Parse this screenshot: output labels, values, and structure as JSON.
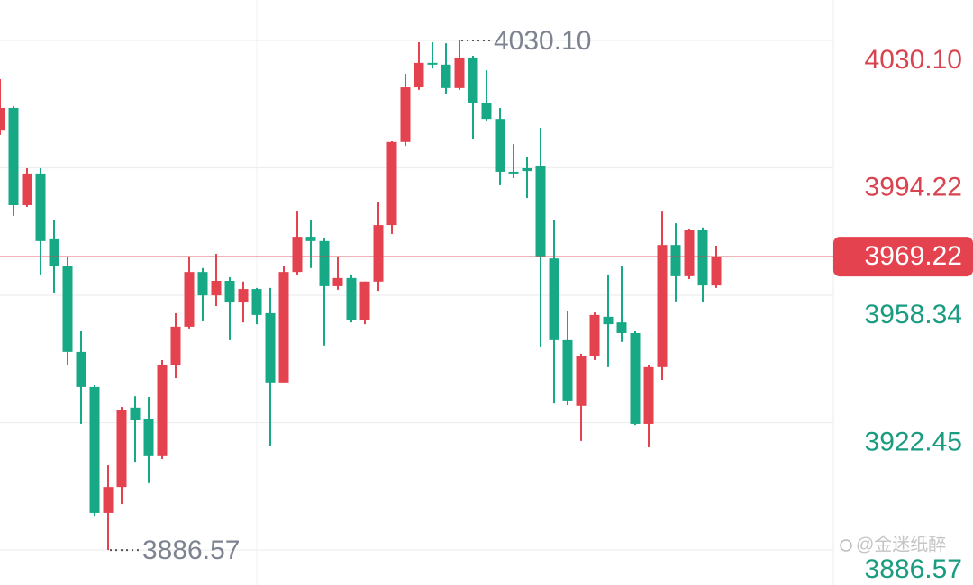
{
  "chart_data": {
    "type": "candlestick",
    "up_color": "#e5424f",
    "down_color": "#17a886",
    "ylim": [
      3876.7,
      4041.51
    ],
    "yticks": [
      {
        "value": 4030.1,
        "label": "4030.10"
      },
      3994.22,
      3958.34,
      3922.45,
      3886.57
    ],
    "grid": true,
    "last_price": 3969.22,
    "annotations": [
      {
        "value": 4030.1,
        "label": "4030.10"
      },
      {
        "value": 3886.57,
        "label": "3886.57"
      }
    ],
    "open": [
      4004.7,
      4011.1,
      3983.7,
      3992.6,
      3974.1,
      3966.7,
      3942.4,
      3932.5,
      3897.0,
      3904.3,
      3926.7,
      3923.6,
      3913.0,
      3938.8,
      3949.5,
      3964.9,
      3958.3,
      3962.4,
      3956.3,
      3960.1,
      3953.3,
      3933.8,
      3964.9,
      3974.8,
      3973.6,
      3960.9,
      3963.2,
      3951.5,
      3962.2,
      3978.1,
      4001.5,
      4016.9,
      4023.8,
      4023.3,
      4016.7,
      4025.3,
      4012.4,
      4008.0,
      3993.1,
      3994.1,
      3994.6,
      3968.7,
      3945.7,
      3927.2,
      3941.1,
      3952.3,
      3950.7,
      3947.7,
      3922.1,
      3938.1,
      3972.5,
      3963.7,
      3976.6,
      3961.1
    ],
    "high": [
      4019.2,
      4011.6,
      3994.1,
      3994.1,
      3979.6,
      3969.3,
      3948.2,
      3933.0,
      3910.4,
      3926.9,
      3929.9,
      3929.7,
      3940.1,
      3953.3,
      3969.3,
      3966.0,
      3970.0,
      3963.4,
      3962.2,
      3960.4,
      3960.4,
      3966.7,
      3981.9,
      3979.6,
      3974.3,
      3969.3,
      3964.2,
      3962.2,
      3984.5,
      4001.7,
      4020.7,
      4029.6,
      4029.6,
      4029.3,
      4030.1,
      4025.8,
      4021.7,
      4011.1,
      4000.9,
      3997.4,
      4005.5,
      3979.4,
      3954.0,
      3941.9,
      3953.5,
      3964.2,
      3966.5,
      3948.2,
      3938.8,
      3981.9,
      3978.6,
      3977.1,
      3977.4,
      3972.3
    ],
    "low": [
      4003.5,
      3980.7,
      3983.2,
      3964.2,
      3959.1,
      3938.6,
      3922.1,
      3896.2,
      3886.57,
      3899.5,
      3911.4,
      3905.4,
      3912.2,
      3935.0,
      3949.0,
      3951.0,
      3955.3,
      3945.7,
      3950.7,
      3950.2,
      3915.8,
      3933.8,
      3964.2,
      3966.0,
      3944.2,
      3959.9,
      3950.7,
      3950.2,
      3959.6,
      3975.6,
      4000.4,
      4016.2,
      4022.2,
      4014.9,
      4016.2,
      4002.2,
      4007.3,
      3989.3,
      3991.3,
      3985.7,
      3943.9,
      3927.9,
      3927.4,
      3917.3,
      3940.1,
      3938.1,
      3945.2,
      3921.8,
      3915.5,
      3934.5,
      3956.6,
      3962.9,
      3956.3,
      3960.4
    ],
    "close": [
      4011.1,
      3983.7,
      3992.6,
      3973.6,
      3966.7,
      3942.4,
      3932.5,
      3897.0,
      3904.3,
      3926.1,
      3923.1,
      3913.0,
      3938.8,
      3949.5,
      3964.9,
      3958.3,
      3962.4,
      3956.3,
      3960.1,
      3952.8,
      3933.8,
      3964.9,
      3974.8,
      3973.6,
      3960.9,
      3963.2,
      3951.5,
      3962.2,
      3978.1,
      4001.5,
      4016.9,
      4023.8,
      4023.5,
      4016.7,
      4025.3,
      4012.4,
      4008.0,
      3993.1,
      3992.8,
      3993.3,
      3969.3,
      3945.7,
      3928.7,
      3941.1,
      3952.8,
      3950.2,
      3947.7,
      3922.1,
      3938.1,
      3972.5,
      3963.7,
      3976.6,
      3961.1,
      3969.22
    ]
  },
  "watermark": "@金迷纸醉"
}
